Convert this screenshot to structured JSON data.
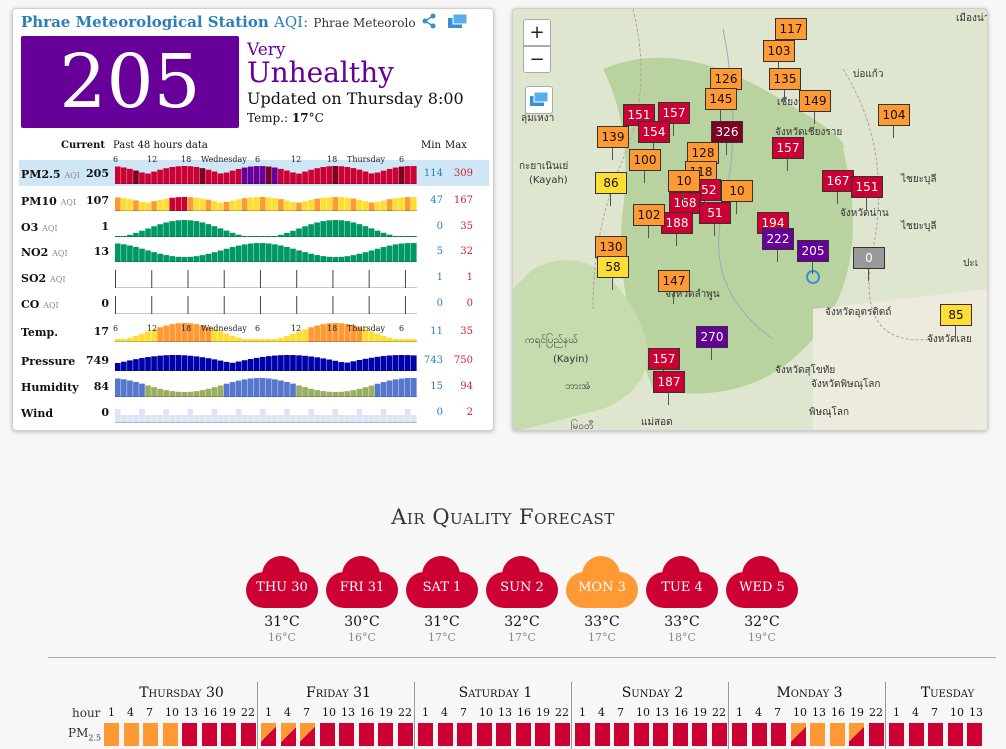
{
  "station": {
    "name": "Phrae Meteorological Station",
    "aqi_label": "AQI:",
    "subtitle": "Phrae Meteorolo"
  },
  "aqi": {
    "value": "205",
    "level_line1": "Very",
    "level_line2": "Unhealthy",
    "updated": "Updated on Thursday 8:00",
    "temp_label": "Temp.:",
    "temp_value": "17",
    "temp_unit": "°C"
  },
  "table": {
    "header_current": "Current",
    "header_past": "Past 48 hours data",
    "header_min": "Min",
    "header_max": "Max",
    "axis_labels": [
      "6",
      "12",
      "18",
      "Wednesday",
      "6",
      "12",
      "18",
      "Thursday",
      "6"
    ],
    "rows": [
      {
        "name": "PM2.5",
        "unit": "AQI",
        "value": "205",
        "min": "114",
        "max": "309"
      },
      {
        "name": "PM10",
        "unit": "AQI",
        "value": "107",
        "min": "47",
        "max": "167"
      },
      {
        "name": "O3",
        "unit": "AQI",
        "value": "1",
        "min": "0",
        "max": "35"
      },
      {
        "name": "NO2",
        "unit": "AQI",
        "value": "13",
        "min": "5",
        "max": "32"
      },
      {
        "name": "SO2",
        "unit": "AQI",
        "value": "",
        "min": "1",
        "max": "1"
      },
      {
        "name": "CO",
        "unit": "AQI",
        "value": "0",
        "min": "0",
        "max": "0"
      },
      {
        "name": "Temp.",
        "unit": "",
        "value": "17",
        "min": "11",
        "max": "35"
      },
      {
        "name": "Pressure",
        "unit": "",
        "value": "749",
        "min": "743",
        "max": "750"
      },
      {
        "name": "Humidity",
        "unit": "",
        "value": "84",
        "min": "15",
        "max": "94"
      },
      {
        "name": "Wind",
        "unit": "",
        "value": "0",
        "min": "0",
        "max": "2"
      }
    ]
  },
  "map": {
    "zoom_in": "+",
    "zoom_out": "−",
    "markers": [
      "117",
      "103",
      "126",
      "135",
      "145",
      "149",
      "104",
      "151",
      "157",
      "154",
      "139",
      "326",
      "128",
      "100",
      "157",
      "118",
      "86",
      "152",
      "167",
      "151",
      "168",
      "188",
      "102",
      "194",
      "222",
      "205",
      "130",
      "58",
      "147",
      "270",
      "157",
      "187",
      "85",
      "10",
      "10",
      "0",
      "51"
    ],
    "places": [
      "เมืองน่าน",
      "ลุ่มเหงา",
      "บ่อแก้ว",
      "เชียงราย",
      "จังหวัดเชียงราย",
      "กะยาเนินเย่",
      "(Kayah)",
      "ไชยะบุลี",
      "จังหวัดน่าน",
      "ไชยะบุลี",
      "จังหวัดลำพูน",
      "จังหวัดอุตรดิตถ์",
      "ปะเ",
      "จังหวัดเลย",
      "ကရင်ပြည်နယ်",
      "(Kayin)",
      "จังหวัดสุโขทัย",
      "จังหวัดพิษณุโลก",
      "พิษณุโลก",
      "ဘားအံ",
      "แม่สอด",
      "မြဝတီ"
    ]
  },
  "forecast": {
    "title": "Air Quality Forecast",
    "days": [
      {
        "label": "THU 30",
        "hi": "31°C",
        "lo": "16°C",
        "color": "#cc0033"
      },
      {
        "label": "FRI 31",
        "hi": "30°C",
        "lo": "16°C",
        "color": "#cc0033"
      },
      {
        "label": "SAT 1",
        "hi": "31°C",
        "lo": "17°C",
        "color": "#cc0033"
      },
      {
        "label": "SUN 2",
        "hi": "32°C",
        "lo": "17°C",
        "color": "#cc0033"
      },
      {
        "label": "MON 3",
        "hi": "33°C",
        "lo": "17°C",
        "color": "#ff9933"
      },
      {
        "label": "TUE 4",
        "hi": "33°C",
        "lo": "18°C",
        "color": "#cc0033"
      },
      {
        "label": "WED 5",
        "hi": "32°C",
        "lo": "19°C",
        "color": "#cc0033"
      }
    ],
    "hour_label": "hour",
    "pm_label": "PM",
    "pm_sub": "2.5",
    "long_days": [
      "Thursday 30",
      "Friday 31",
      "Saturday 1",
      "Sunday 2",
      "Monday 3",
      "Tuesday"
    ],
    "hours": [
      "1",
      "4",
      "7",
      "10",
      "13",
      "16",
      "19",
      "22"
    ],
    "hours_short": [
      "1",
      "4",
      "7",
      "10",
      "13"
    ]
  }
}
